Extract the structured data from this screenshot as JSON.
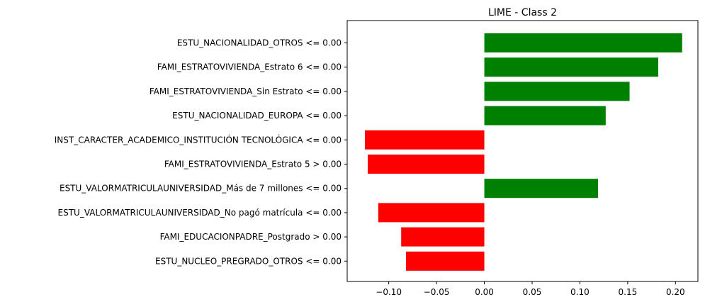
{
  "chart_data": {
    "type": "bar",
    "orientation": "horizontal",
    "title": "LIME - Class 2",
    "xlabel": "",
    "ylabel": "",
    "xlim": [
      -0.1435,
      0.2235
    ],
    "xticks": [
      -0.1,
      -0.05,
      0.0,
      0.05,
      0.1,
      0.15,
      0.2
    ],
    "xtick_labels": [
      "−0.10",
      "−0.05",
      "0.00",
      "0.05",
      "0.10",
      "0.15",
      "0.20"
    ],
    "grid": false,
    "positive_color": "#008000",
    "negative_color": "#ff0000",
    "categories": [
      "ESTU_NACIONALIDAD_OTROS <= 0.00",
      "FAMI_ESTRATOVIVIENDA_Estrato 6 <= 0.00",
      "FAMI_ESTRATOVIVIENDA_Sin Estrato <= 0.00",
      "ESTU_NACIONALIDAD_EUROPA <= 0.00",
      "INST_CARACTER_ACADEMICO_INSTITUCIÓN TECNOLÓGICA <= 0.00",
      "FAMI_ESTRATOVIVIENDA_Estrato 5 > 0.00",
      "ESTU_VALORMATRICULAUNIVERSIDAD_Más de 7 millones <= 0.00",
      "ESTU_VALORMATRICULAUNIVERSIDAD_No pagó matrícula <= 0.00",
      "FAMI_EDUCACIONPADRE_Postgrado > 0.00",
      "ESTU_NUCLEO_PREGRADO_OTROS <= 0.00"
    ],
    "values": [
      0.207,
      0.182,
      0.152,
      0.127,
      -0.125,
      -0.122,
      0.119,
      -0.111,
      -0.087,
      -0.082
    ]
  }
}
